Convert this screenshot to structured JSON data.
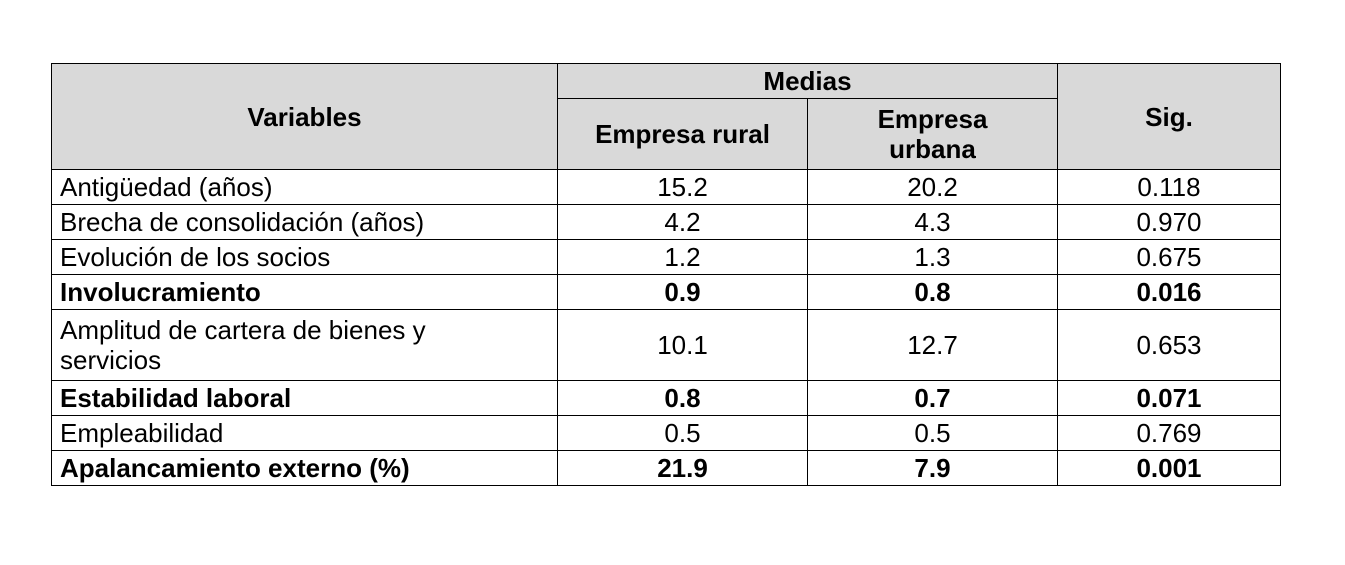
{
  "table": {
    "header": {
      "variables": "Variables",
      "medias": "Medias",
      "rural": "Empresa rural",
      "urbana": "Empresa urbana",
      "sig": "Sig."
    },
    "rows": [
      {
        "variable": "Antigüedad (años)",
        "rural": "15.2",
        "urbana": "20.2",
        "sig": "0.118",
        "bold": false
      },
      {
        "variable": "Brecha de consolidación (años)",
        "rural": "4.2",
        "urbana": "4.3",
        "sig": "0.970",
        "bold": false
      },
      {
        "variable": "Evolución de los socios",
        "rural": "1.2",
        "urbana": "1.3",
        "sig": "0.675",
        "bold": false
      },
      {
        "variable": "Involucramiento",
        "rural": "0.9",
        "urbana": "0.8",
        "sig": "0.016",
        "bold": true
      },
      {
        "variable": "Amplitud de cartera de bienes y servicios",
        "rural": "10.1",
        "urbana": "12.7",
        "sig": "0.653",
        "bold": false
      },
      {
        "variable": "Estabilidad laboral",
        "rural": "0.8",
        "urbana": "0.7",
        "sig": "0.071",
        "bold": true
      },
      {
        "variable": "Empleabilidad",
        "rural": "0.5",
        "urbana": "0.5",
        "sig": "0.769",
        "bold": false
      },
      {
        "variable": "Apalancamiento externo (%)",
        "rural": "21.9",
        "urbana": "7.9",
        "sig": "0.001",
        "bold": true
      }
    ]
  }
}
